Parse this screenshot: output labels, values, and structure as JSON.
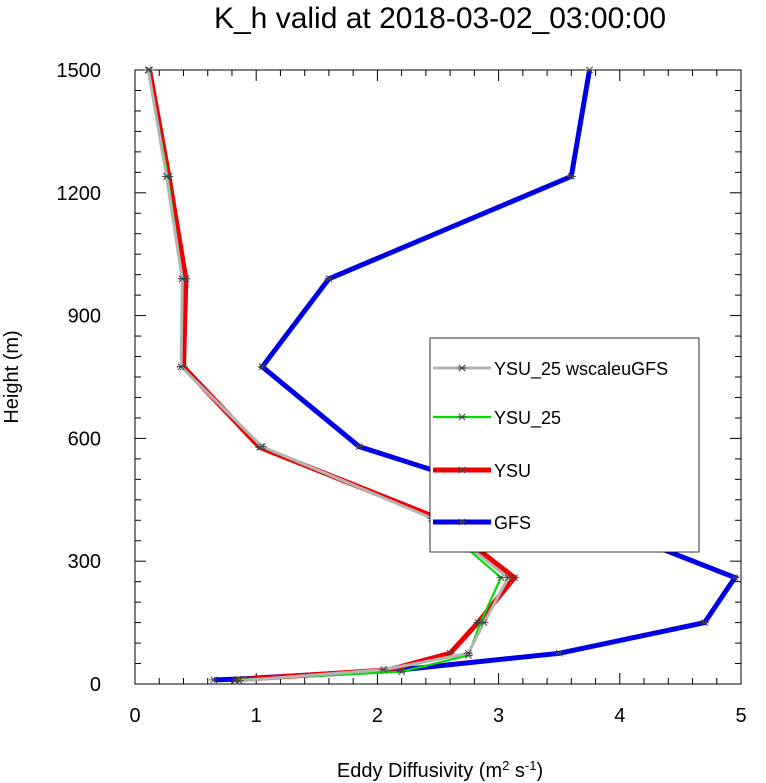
{
  "chart_data": {
    "type": "line",
    "title": "K_h valid at 2018-03-02_03:00:00",
    "xlabel": "Eddy Diffusivity",
    "xlabel_units": {
      "base": "(m",
      "exp1": "2",
      "mid": " s",
      "exp2": "-1",
      "end": ")"
    },
    "ylabel": "Height (m)",
    "xlim": [
      0,
      5
    ],
    "ylim": [
      0,
      1500
    ],
    "xticks": [
      0,
      1,
      2,
      3,
      4,
      5
    ],
    "yticks": [
      0,
      300,
      600,
      900,
      1200,
      1500
    ],
    "xminor_step": 0.2,
    "yminor_step": 50,
    "grid": false,
    "legend_position": "right-center",
    "series": [
      {
        "name": "GFS",
        "color": "#0000e6",
        "points": [
          [
            0.65,
            10
          ],
          [
            0.85,
            12
          ],
          [
            2.2,
            35
          ],
          [
            3.5,
            75
          ],
          [
            4.7,
            150
          ],
          [
            4.95,
            260
          ],
          [
            3.7,
            405
          ],
          [
            1.85,
            580
          ],
          [
            1.05,
            775
          ],
          [
            1.6,
            990
          ],
          [
            3.6,
            1240
          ],
          [
            3.75,
            1500
          ]
        ]
      },
      {
        "name": "YSU",
        "color": "#ee0000",
        "points": [
          [
            0.83,
            10
          ],
          [
            2.1,
            35
          ],
          [
            2.6,
            75
          ],
          [
            2.83,
            150
          ],
          [
            3.13,
            260
          ],
          [
            2.5,
            405
          ],
          [
            1.03,
            578
          ],
          [
            0.4,
            775
          ],
          [
            0.42,
            990
          ],
          [
            0.28,
            1240
          ],
          [
            0.12,
            1500
          ]
        ]
      },
      {
        "name": "YSU_25",
        "color": "#00dd00",
        "points": [
          [
            0.83,
            10
          ],
          [
            2.2,
            30
          ],
          [
            2.75,
            70
          ],
          [
            2.85,
            150
          ],
          [
            3.02,
            260
          ],
          [
            2.45,
            405
          ],
          [
            1.04,
            580
          ],
          [
            0.38,
            775
          ],
          [
            0.39,
            990
          ],
          [
            0.27,
            1240
          ],
          [
            0.11,
            1500
          ]
        ]
      },
      {
        "name": "YSU_25 wscaleuGFS",
        "color": "#b4b4b4",
        "points": [
          [
            0.86,
            8
          ],
          [
            2.05,
            35
          ],
          [
            2.75,
            75
          ],
          [
            2.88,
            150
          ],
          [
            3.08,
            260
          ],
          [
            2.45,
            405
          ],
          [
            1.05,
            580
          ],
          [
            0.38,
            775
          ],
          [
            0.39,
            990
          ],
          [
            0.26,
            1240
          ],
          [
            0.11,
            1500
          ]
        ]
      }
    ],
    "legend": [
      "YSU_25 wscaleuGFS",
      "YSU_25",
      "YSU",
      "GFS"
    ]
  }
}
